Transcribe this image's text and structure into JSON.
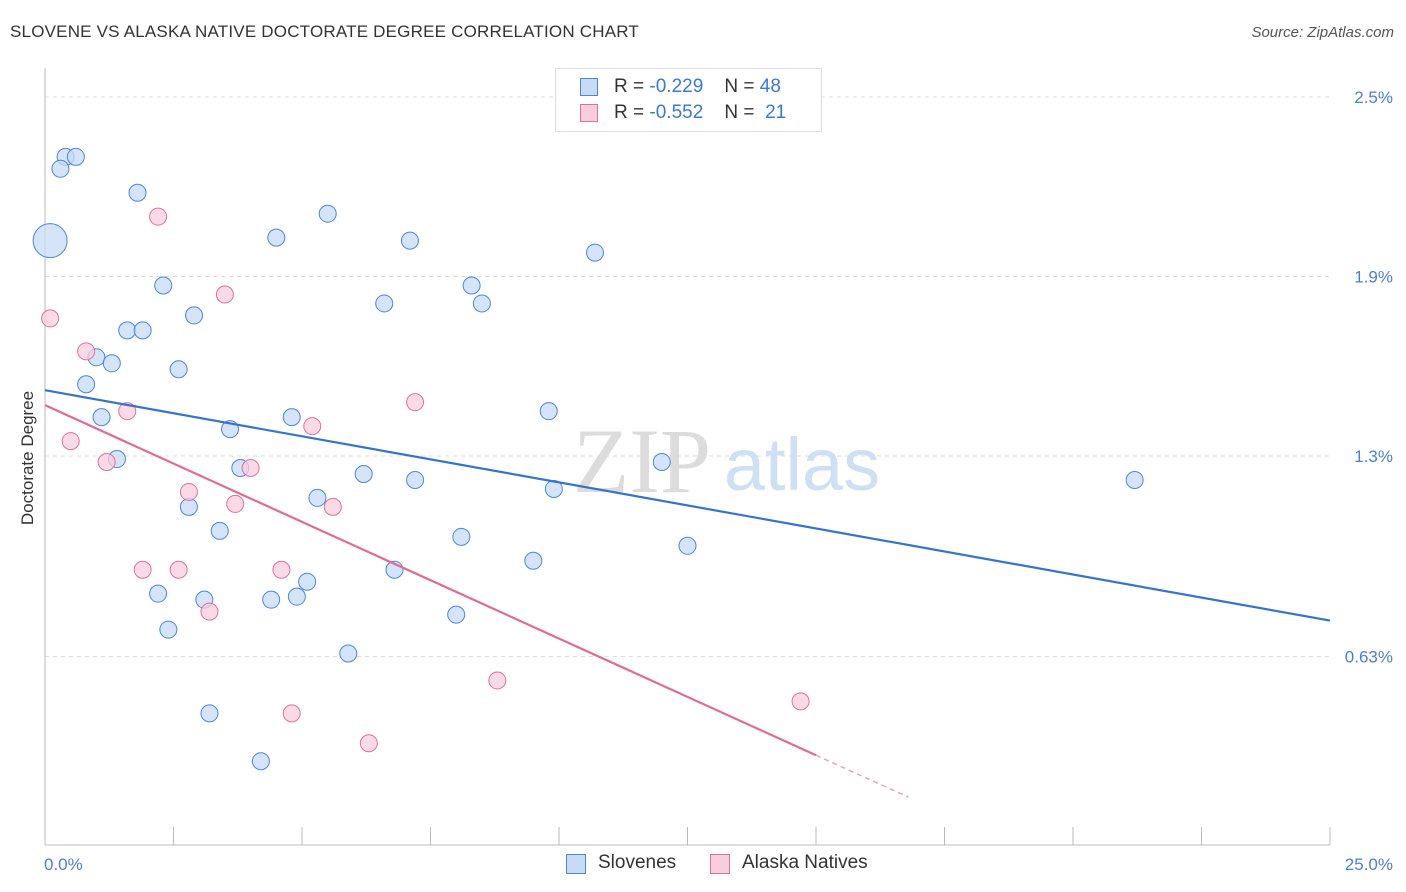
{
  "title": "SLOVENE VS ALASKA NATIVE DOCTORATE DEGREE CORRELATION CHART",
  "source": "Source: ZipAtlas.com",
  "watermark": {
    "zip": "ZIP",
    "atlas": "atlas"
  },
  "legend": {
    "rows": [
      {
        "r_label": "R =",
        "r_value": "-0.229",
        "n_label": "N =",
        "n_value": "48"
      },
      {
        "r_label": "R =",
        "r_value": "-0.552",
        "n_label": "N =",
        "n_value": "21"
      }
    ]
  },
  "chart_data": {
    "type": "scatter",
    "title": "SLOVENE VS ALASKA NATIVE DOCTORATE DEGREE CORRELATION CHART",
    "xlabel": "",
    "ylabel": "Doctorate Degree",
    "xlim": [
      0,
      25
    ],
    "ylim": [
      0,
      2.5
    ],
    "x_tick_labels": [
      "0.0%",
      "25.0%"
    ],
    "y_ticks": [
      {
        "value": 0.63,
        "label": "0.63%"
      },
      {
        "value": 1.3,
        "label": "1.3%"
      },
      {
        "value": 1.9,
        "label": "1.9%"
      },
      {
        "value": 2.5,
        "label": "2.5%"
      }
    ],
    "colors": {
      "slovenes": "#4a86e0",
      "slovenes_fill": "#c7dbf6",
      "alaska": "#e0709a",
      "alaska_fill": "#f8cedd",
      "grid": "#dddddd"
    },
    "series": [
      {
        "name": "Slovenes",
        "trend": {
          "x0": 0.0,
          "y0": 1.52,
          "x1": 25.0,
          "y1": 0.75
        },
        "points": [
          {
            "x": 0.4,
            "y": 2.3
          },
          {
            "x": 0.6,
            "y": 2.3
          },
          {
            "x": 0.3,
            "y": 2.26
          },
          {
            "x": 1.8,
            "y": 2.18
          },
          {
            "x": 0.1,
            "y": 2.02,
            "big": true
          },
          {
            "x": 2.3,
            "y": 1.87
          },
          {
            "x": 5.5,
            "y": 2.11
          },
          {
            "x": 4.5,
            "y": 2.03
          },
          {
            "x": 7.1,
            "y": 2.02
          },
          {
            "x": 10.7,
            "y": 1.98
          },
          {
            "x": 8.3,
            "y": 1.87
          },
          {
            "x": 8.5,
            "y": 1.81
          },
          {
            "x": 6.6,
            "y": 1.81
          },
          {
            "x": 2.9,
            "y": 1.77
          },
          {
            "x": 1.6,
            "y": 1.72
          },
          {
            "x": 1.9,
            "y": 1.72
          },
          {
            "x": 1.0,
            "y": 1.63
          },
          {
            "x": 1.3,
            "y": 1.61
          },
          {
            "x": 2.6,
            "y": 1.59
          },
          {
            "x": 0.8,
            "y": 1.54
          },
          {
            "x": 1.1,
            "y": 1.43
          },
          {
            "x": 4.8,
            "y": 1.43
          },
          {
            "x": 9.8,
            "y": 1.45
          },
          {
            "x": 3.6,
            "y": 1.39
          },
          {
            "x": 1.4,
            "y": 1.29
          },
          {
            "x": 3.8,
            "y": 1.26
          },
          {
            "x": 6.2,
            "y": 1.24
          },
          {
            "x": 7.2,
            "y": 1.22
          },
          {
            "x": 12.0,
            "y": 1.28
          },
          {
            "x": 21.2,
            "y": 1.22
          },
          {
            "x": 9.9,
            "y": 1.19
          },
          {
            "x": 5.3,
            "y": 1.16
          },
          {
            "x": 2.8,
            "y": 1.13
          },
          {
            "x": 3.4,
            "y": 1.05
          },
          {
            "x": 8.1,
            "y": 1.03
          },
          {
            "x": 12.5,
            "y": 1.0
          },
          {
            "x": 9.5,
            "y": 0.95
          },
          {
            "x": 6.8,
            "y": 0.92
          },
          {
            "x": 5.1,
            "y": 0.88
          },
          {
            "x": 2.2,
            "y": 0.84
          },
          {
            "x": 3.1,
            "y": 0.82
          },
          {
            "x": 4.4,
            "y": 0.82
          },
          {
            "x": 4.9,
            "y": 0.83
          },
          {
            "x": 8.0,
            "y": 0.77
          },
          {
            "x": 2.4,
            "y": 0.72
          },
          {
            "x": 5.9,
            "y": 0.64
          },
          {
            "x": 3.2,
            "y": 0.44
          },
          {
            "x": 4.2,
            "y": 0.28
          }
        ]
      },
      {
        "name": "Alaska Natives",
        "trend": {
          "x0": 0.0,
          "y0": 1.47,
          "x1": 15.0,
          "y1": 0.3,
          "dash_to_x": 16.8,
          "dash_to_y": 0.16
        },
        "points": [
          {
            "x": 2.2,
            "y": 2.1
          },
          {
            "x": 3.5,
            "y": 1.84
          },
          {
            "x": 0.1,
            "y": 1.76
          },
          {
            "x": 0.8,
            "y": 1.65
          },
          {
            "x": 7.2,
            "y": 1.48
          },
          {
            "x": 1.6,
            "y": 1.45
          },
          {
            "x": 5.2,
            "y": 1.4
          },
          {
            "x": 0.5,
            "y": 1.35
          },
          {
            "x": 1.2,
            "y": 1.28
          },
          {
            "x": 4.0,
            "y": 1.26
          },
          {
            "x": 2.8,
            "y": 1.18
          },
          {
            "x": 3.7,
            "y": 1.14
          },
          {
            "x": 5.6,
            "y": 1.13
          },
          {
            "x": 1.9,
            "y": 0.92
          },
          {
            "x": 2.6,
            "y": 0.92
          },
          {
            "x": 4.6,
            "y": 0.92
          },
          {
            "x": 3.2,
            "y": 0.78
          },
          {
            "x": 8.8,
            "y": 0.55
          },
          {
            "x": 14.7,
            "y": 0.48
          },
          {
            "x": 4.8,
            "y": 0.44
          },
          {
            "x": 6.3,
            "y": 0.34
          }
        ]
      }
    ]
  }
}
